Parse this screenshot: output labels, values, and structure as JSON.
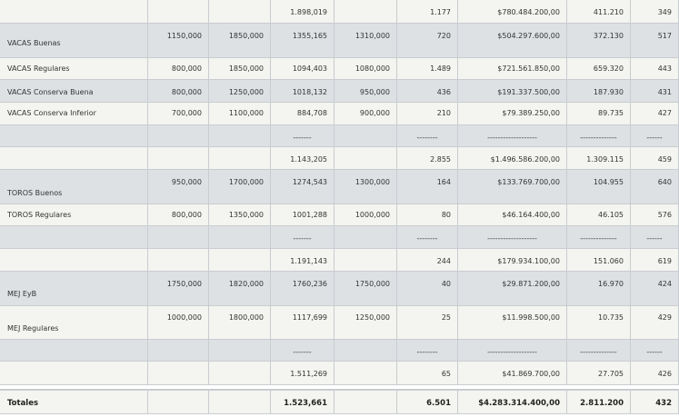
{
  "rows": [
    {
      "shade": false,
      "cells": [
        "",
        "",
        "",
        "1.898,019",
        "",
        "1.177",
        "$780.484.200,00",
        "411.210",
        "349"
      ]
    },
    {
      "shade": true,
      "cells": [
        "VACAS Buenas",
        "1150,000",
        "1850,000",
        "1355,165",
        "1310,000",
        "720",
        "$504.297.600,00",
        "372.130",
        "517"
      ]
    },
    {
      "shade": false,
      "cells": [
        "VACAS Regulares",
        "800,000",
        "1850,000",
        "1094,403",
        "1080,000",
        "1.489",
        "$721.561.850,00",
        "659.320",
        "443"
      ]
    },
    {
      "shade": true,
      "cells": [
        "VACAS Conserva Buena",
        "800,000",
        "1250,000",
        "1018,132",
        "950,000",
        "436",
        "$191.337.500,00",
        "187.930",
        "431"
      ]
    },
    {
      "shade": false,
      "cells": [
        "VACAS Conserva Inferior",
        "700,000",
        "1100,000",
        "884,708",
        "900,000",
        "210",
        "$79.389.250,00",
        "89.735",
        "427"
      ]
    },
    {
      "shade": true,
      "cells": [
        "",
        "",
        "",
        "-------",
        "",
        "--------",
        "-------------------",
        "--------------",
        "------"
      ]
    },
    {
      "shade": false,
      "cells": [
        "",
        "",
        "",
        "1.143,205",
        "",
        "2.855",
        "$1.496.586.200,00",
        "1.309.115",
        "459"
      ]
    },
    {
      "shade": true,
      "cells": [
        "TOROS Buenos",
        "950,000",
        "1700,000",
        "1274,543",
        "1300,000",
        "164",
        "$133.769.700,00",
        "104.955",
        "640"
      ]
    },
    {
      "shade": false,
      "cells": [
        "TOROS Regulares",
        "800,000",
        "1350,000",
        "1001,288",
        "1000,000",
        "80",
        "$46.164.400,00",
        "46.105",
        "576"
      ]
    },
    {
      "shade": true,
      "cells": [
        "",
        "",
        "",
        "-------",
        "",
        "--------",
        "-------------------",
        "--------------",
        "------"
      ]
    },
    {
      "shade": false,
      "cells": [
        "",
        "",
        "",
        "1.191,143",
        "",
        "244",
        "$179.934.100,00",
        "151.060",
        "619"
      ]
    },
    {
      "shade": true,
      "cells": [
        "MEJ EyB",
        "1750,000",
        "1820,000",
        "1760,236",
        "1750,000",
        "40",
        "$29.871.200,00",
        "16.970",
        "424"
      ]
    },
    {
      "shade": false,
      "cells": [
        "MEJ Regulares",
        "1000,000",
        "1800,000",
        "1117,699",
        "1250,000",
        "25",
        "$11.998.500,00",
        "10.735",
        "429"
      ]
    },
    {
      "shade": true,
      "cells": [
        "",
        "",
        "",
        "-------",
        "",
        "--------",
        "-------------------",
        "--------------",
        "------"
      ]
    },
    {
      "shade": false,
      "cells": [
        "",
        "",
        "",
        "1.511,269",
        "",
        "65",
        "$41.869.700,00",
        "27.705",
        "426"
      ]
    }
  ],
  "totals": {
    "cells": [
      "Totales",
      "",
      "",
      "1.523,661",
      "",
      "6.501",
      "$4.283.314.400,00",
      "2.811.200",
      "432"
    ]
  }
}
